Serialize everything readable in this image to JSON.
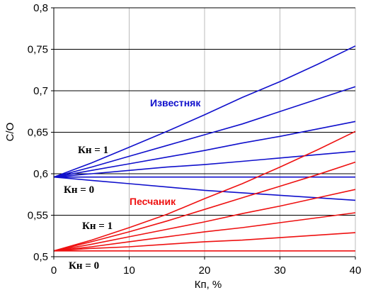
{
  "chart_data": {
    "type": "line",
    "title": "",
    "xlabel": "Кп, %",
    "ylabel": "C/O",
    "xlim": [
      0,
      40
    ],
    "ylim": [
      0.5,
      0.8
    ],
    "x_ticks": [
      0,
      10,
      20,
      30,
      40
    ],
    "x_tick_labels": [
      "0",
      "10",
      "20",
      "30",
      "40"
    ],
    "y_ticks": [
      0.5,
      0.55,
      0.6,
      0.65,
      0.7,
      0.75,
      0.8
    ],
    "y_tick_labels": [
      "0,5",
      "0,55",
      "0,6",
      "0,65",
      "0,7",
      "0,75",
      "0,8"
    ],
    "grid": {
      "horizontal": true,
      "vertical": true
    },
    "colors": {
      "limestone": "#1010cc",
      "sandstone": "#ee1111",
      "grid_h": "#000000",
      "grid_v": "#bbbbbb"
    },
    "x": [
      0,
      5,
      10,
      15,
      20,
      25,
      30,
      35,
      40
    ],
    "series": [
      {
        "group": "Известняк",
        "color": "#1010cc",
        "values": [
          0.596,
          0.613,
          0.632,
          0.651,
          0.671,
          0.692,
          0.711,
          0.732,
          0.754
        ]
      },
      {
        "group": "Известняк",
        "color": "#1010cc",
        "values": [
          0.596,
          0.608,
          0.621,
          0.634,
          0.647,
          0.66,
          0.675,
          0.69,
          0.705
        ]
      },
      {
        "group": "Известняк",
        "color": "#1010cc",
        "values": [
          0.596,
          0.604,
          0.612,
          0.62,
          0.628,
          0.637,
          0.645,
          0.654,
          0.663
        ]
      },
      {
        "group": "Известняк",
        "color": "#1010cc",
        "values": [
          0.596,
          0.6,
          0.604,
          0.608,
          0.611,
          0.615,
          0.619,
          0.623,
          0.627
        ]
      },
      {
        "group": "Известняк",
        "color": "#1010cc",
        "values": [
          0.596,
          0.596,
          0.596,
          0.596,
          0.596,
          0.596,
          0.596,
          0.596,
          0.596
        ]
      },
      {
        "group": "Известняк",
        "color": "#1010cc",
        "values": [
          0.596,
          0.592,
          0.588,
          0.584,
          0.58,
          0.577,
          0.574,
          0.571,
          0.568
        ]
      },
      {
        "group": "Песчаник",
        "color": "#ee1111",
        "values": [
          0.507,
          0.52,
          0.535,
          0.551,
          0.57,
          0.588,
          0.608,
          0.629,
          0.651
        ]
      },
      {
        "group": "Песчаник",
        "color": "#ee1111",
        "values": [
          0.507,
          0.518,
          0.53,
          0.543,
          0.557,
          0.571,
          0.585,
          0.599,
          0.614
        ]
      },
      {
        "group": "Песчаник",
        "color": "#ee1111",
        "values": [
          0.507,
          0.515,
          0.524,
          0.533,
          0.542,
          0.552,
          0.561,
          0.571,
          0.581
        ]
      },
      {
        "group": "Песчаник",
        "color": "#ee1111",
        "values": [
          0.507,
          0.512,
          0.518,
          0.524,
          0.53,
          0.535,
          0.541,
          0.547,
          0.553
        ]
      },
      {
        "group": "Песчаник",
        "color": "#ee1111",
        "values": [
          0.507,
          0.51,
          0.512,
          0.515,
          0.518,
          0.52,
          0.523,
          0.526,
          0.529
        ]
      },
      {
        "group": "Песчаник",
        "color": "#ee1111",
        "values": [
          0.507,
          0.507,
          0.507,
          0.507,
          0.507,
          0.507,
          0.507,
          0.507,
          0.507
        ]
      }
    ],
    "annotations": {
      "limestone_label": "Известняк",
      "sandstone_label": "Песчаник",
      "kn1_upper": "Кн = 1",
      "kn0_upper": "Кн = 0",
      "kn1_lower": "Кн = 1",
      "kn0_lower": "Кн = 0"
    }
  }
}
